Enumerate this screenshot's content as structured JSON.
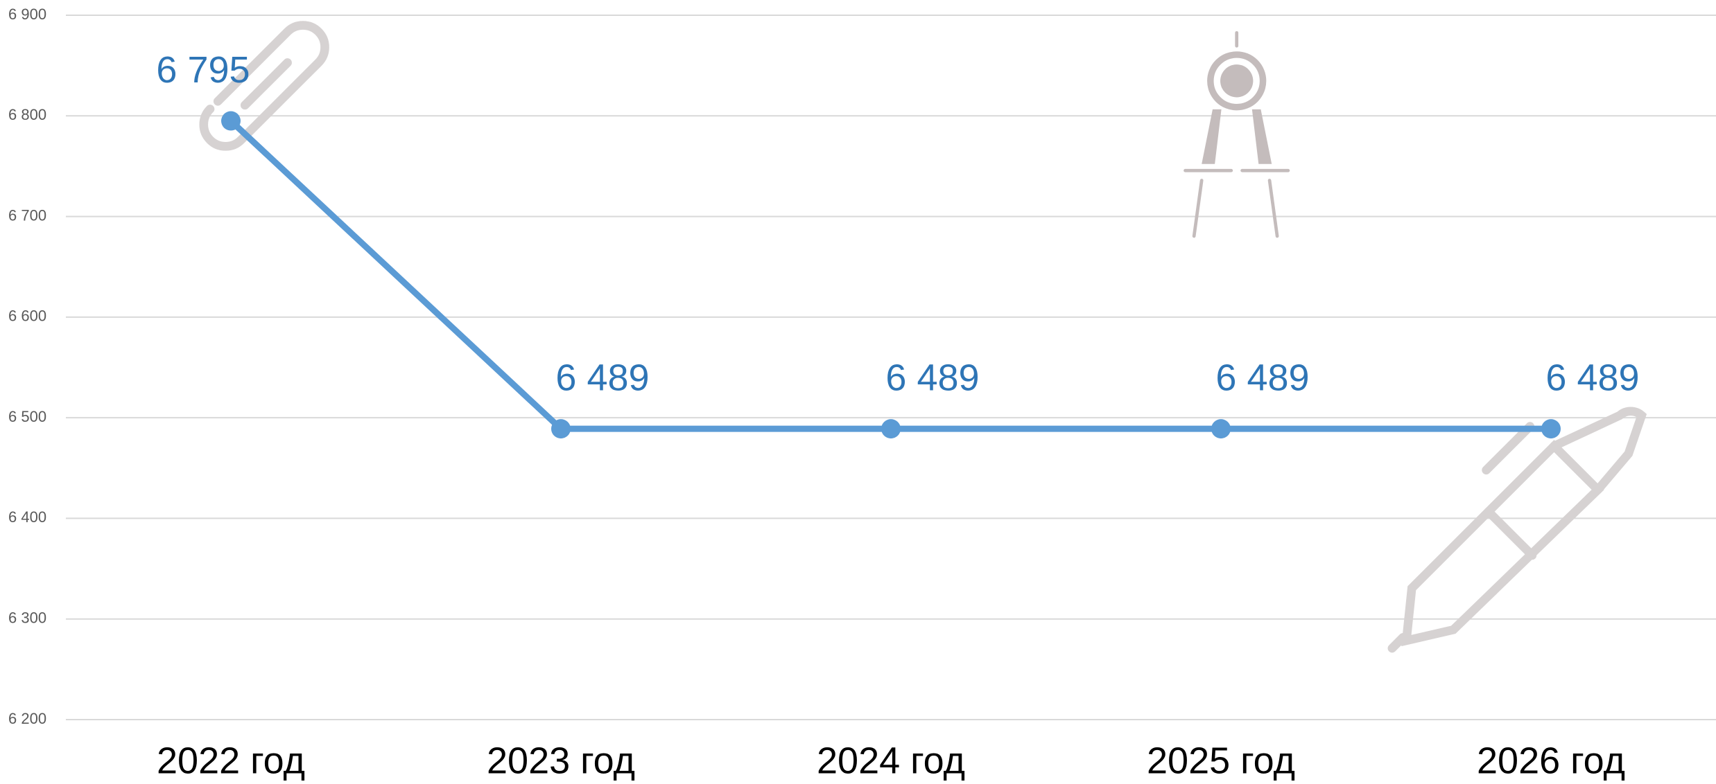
{
  "chart_data": {
    "type": "line",
    "categories": [
      "2022 год",
      "2023 год",
      "2024 год",
      "2025 год",
      "2026 год"
    ],
    "series": [
      {
        "color": "#5b9bd5",
        "values": [
          6795,
          6489,
          6489,
          6489,
          6489
        ],
        "value_labels": [
          "6 795",
          "6 489",
          "6 489",
          "6 489",
          "6 489"
        ]
      }
    ],
    "ylim": [
      6200,
      6900
    ],
    "yticks": [
      {
        "value": 6200,
        "label": "6 200"
      },
      {
        "value": 6300,
        "label": "6 300"
      },
      {
        "value": 6400,
        "label": "6 400"
      },
      {
        "value": 6500,
        "label": "6 500"
      },
      {
        "value": 6600,
        "label": "6 600"
      },
      {
        "value": 6700,
        "label": "6 700"
      },
      {
        "value": 6800,
        "label": "6 800"
      },
      {
        "value": 6900,
        "label": "6 900"
      }
    ],
    "grid": true
  }
}
